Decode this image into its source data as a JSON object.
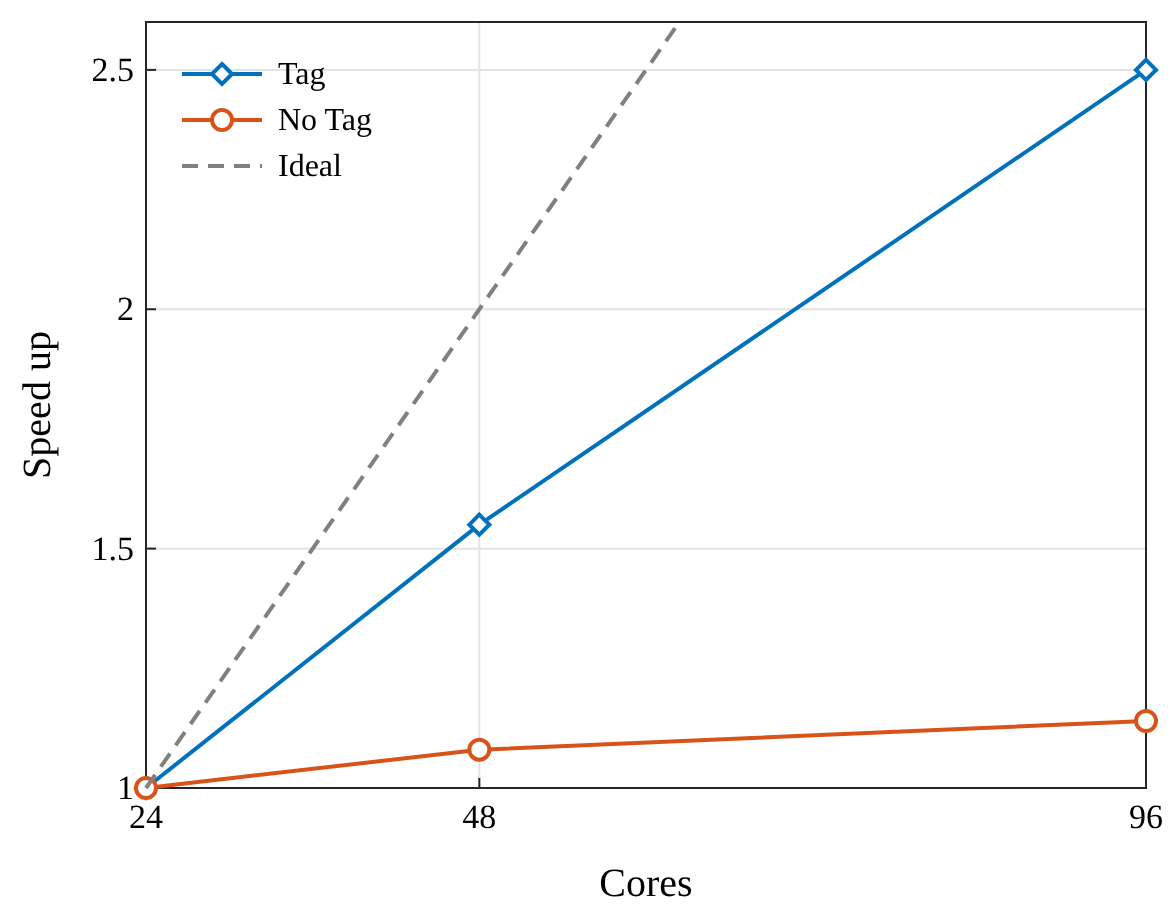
{
  "chart_data": {
    "type": "line",
    "xlabel": "Cores",
    "ylabel": "Speed up",
    "x": [
      24,
      48,
      96
    ],
    "xlim": [
      24,
      96
    ],
    "ylim": [
      1,
      2.6
    ],
    "xticks": [
      24,
      48,
      96
    ],
    "yticks": [
      1,
      1.5,
      2,
      2.5
    ],
    "grid": true,
    "legend": "top left",
    "series": [
      {
        "name": "Tag",
        "color": "#0072bd",
        "values": [
          1,
          1.55,
          2.5
        ],
        "marker": "diamond",
        "line_style": "solid"
      },
      {
        "name": "No Tag",
        "color": "#d95319",
        "values": [
          1,
          1.08,
          1.14
        ],
        "marker": "circle",
        "line_style": "solid"
      },
      {
        "name": "Ideal",
        "color": "#808080",
        "x": [
          24,
          48,
          62.4
        ],
        "values": [
          1,
          2,
          2.6
        ],
        "marker": "none",
        "line_style": "dashed"
      }
    ]
  }
}
